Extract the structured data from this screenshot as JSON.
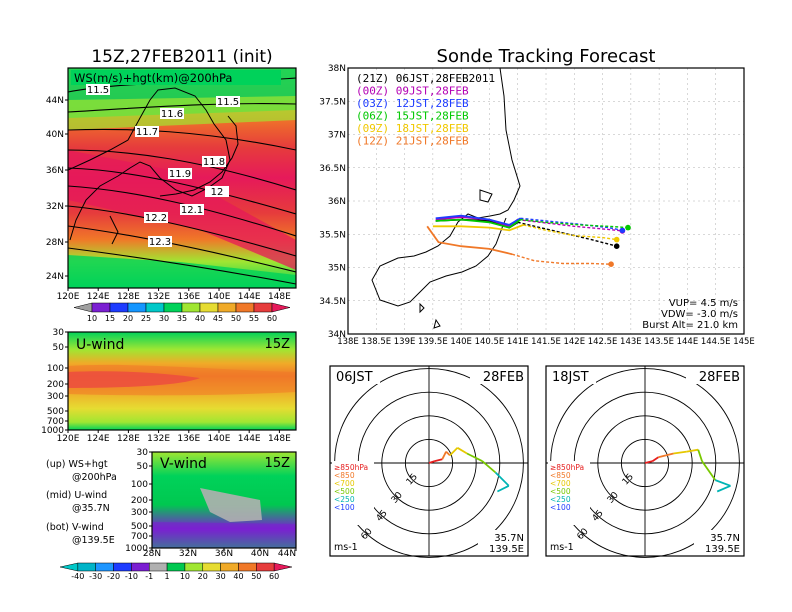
{
  "left_title": "15Z,27FEB2011 (init)",
  "right_title": "Sonde Tracking Forecast",
  "ws_panel": {
    "label": "WS(m/s)+hgt(km)@200hPa",
    "lon_ticks": [
      "120E",
      "124E",
      "128E",
      "132E",
      "136E",
      "140E",
      "144E",
      "148E"
    ],
    "lat_ticks": [
      "44N",
      "40N",
      "36N",
      "32N",
      "28N",
      "24N"
    ],
    "contour_labels": [
      "11.5",
      "11.6",
      "11.5",
      "11.7",
      "11.8",
      "11.9",
      "12",
      "12.1",
      "12.2",
      "12.3"
    ],
    "colorbar": [
      {
        "label": "10",
        "color": "#7b1fd2"
      },
      {
        "label": "15",
        "color": "#1e3cff"
      },
      {
        "label": "20",
        "color": "#1496ff"
      },
      {
        "label": "25",
        "color": "#00c8c8"
      },
      {
        "label": "30",
        "color": "#00d25a"
      },
      {
        "label": "35",
        "color": "#a0e632"
      },
      {
        "label": "40",
        "color": "#e6dc32"
      },
      {
        "label": "45",
        "color": "#f0aa28"
      },
      {
        "label": "50",
        "color": "#f07828"
      },
      {
        "label": "55",
        "color": "#e63c3c"
      },
      {
        "label": "60",
        "color": "#e6195a"
      }
    ]
  },
  "u_panel": {
    "label": "U-wind",
    "time": "15Z",
    "p_ticks": [
      "30",
      "50",
      "100",
      "200",
      "300",
      "500",
      "700",
      "1000"
    ],
    "lon_ticks": [
      "120E",
      "124E",
      "128E",
      "132E",
      "136E",
      "140E",
      "144E",
      "148E"
    ]
  },
  "v_panel": {
    "label": "V-wind",
    "time": "15Z",
    "p_ticks": [
      "30",
      "50",
      "100",
      "200",
      "300",
      "500",
      "700",
      "1000"
    ],
    "lat_ticks": [
      "28N",
      "32N",
      "36N",
      "40N",
      "44N"
    ],
    "colorbar": [
      {
        "label": "-40",
        "color": "#00b4c8"
      },
      {
        "label": "-30",
        "color": "#1e96ff"
      },
      {
        "label": "-20",
        "color": "#1e3cff"
      },
      {
        "label": "-10",
        "color": "#7b1fd2"
      },
      {
        "label": "-1",
        "color": "#b0b0b0"
      },
      {
        "label": "1",
        "color": "#00c850"
      },
      {
        "label": "10",
        "color": "#a0e632"
      },
      {
        "label": "20",
        "color": "#e6dc32"
      },
      {
        "label": "30",
        "color": "#f0aa28"
      },
      {
        "label": "40",
        "color": "#f07828"
      },
      {
        "label": "50",
        "color": "#e63c3c"
      },
      {
        "label": "60",
        "color": "#e6195a"
      }
    ]
  },
  "legend_notes": [
    {
      "a": "(up) WS+hgt",
      "b": "@200hPa"
    },
    {
      "a": "(mid) U-wind",
      "b": "@35.7N"
    },
    {
      "a": "(bot) V-wind",
      "b": "@139.5E"
    }
  ],
  "track_panel": {
    "lat_ticks": [
      "38N",
      "37.5N",
      "37N",
      "36.5N",
      "36N",
      "35.5N",
      "35N",
      "34.5N",
      "34N"
    ],
    "lon_ticks": [
      "138E",
      "138.5E",
      "139E",
      "139.5E",
      "140E",
      "140.5E",
      "141E",
      "141.5E",
      "142E",
      "142.5E",
      "143E",
      "143.5E",
      "144E",
      "144.5E",
      "145E"
    ],
    "info": [
      "VUP= 4.5 m/s",
      "VDW= -3.0 m/s",
      "Burst Alt= 21.0 km"
    ]
  },
  "chart_data": {
    "type": "line",
    "title": "Sonde Tracking Forecast",
    "xlabel": "",
    "ylabel": "",
    "xlim": [
      138,
      145
    ],
    "ylim": [
      34,
      38
    ],
    "series": [
      {
        "name": "(21Z) 06JST,28FEB2011",
        "color": "#000000",
        "lon": [
          139.55,
          140.0,
          140.5,
          140.85,
          141.0,
          141.3,
          141.8,
          142.3,
          142.75
        ],
        "lat": [
          35.7,
          35.72,
          35.7,
          35.6,
          35.68,
          35.62,
          35.52,
          35.42,
          35.32
        ]
      },
      {
        "name": "(00Z) 09JST,28FEB",
        "color": "#b400b4",
        "lon": [
          139.55,
          140.0,
          140.5,
          140.85,
          141.0,
          141.4,
          142.0,
          142.5,
          142.85
        ],
        "lat": [
          35.72,
          35.76,
          35.72,
          35.62,
          35.72,
          35.68,
          35.62,
          35.58,
          35.55
        ]
      },
      {
        "name": "(03Z) 12JST,28FEB",
        "color": "#1e3cff",
        "lon": [
          139.55,
          140.0,
          140.5,
          140.85,
          141.05,
          141.5,
          142.1,
          142.6,
          142.85
        ],
        "lat": [
          35.74,
          35.78,
          35.72,
          35.64,
          35.74,
          35.7,
          35.65,
          35.6,
          35.56
        ]
      },
      {
        "name": "(06Z) 15JST,28FEB",
        "color": "#00c800",
        "lon": [
          139.55,
          140.0,
          140.5,
          140.85,
          141.05,
          141.5,
          142.1,
          142.6,
          142.95
        ],
        "lat": [
          35.7,
          35.72,
          35.68,
          35.6,
          35.72,
          35.68,
          35.64,
          35.62,
          35.6
        ]
      },
      {
        "name": "(09Z) 18JST,28FEB",
        "color": "#f0c800",
        "lon": [
          139.5,
          140.0,
          140.5,
          140.85,
          141.1,
          141.5,
          142.0,
          142.5,
          142.75
        ],
        "lat": [
          35.62,
          35.62,
          35.6,
          35.56,
          35.64,
          35.56,
          35.48,
          35.45,
          35.42
        ]
      },
      {
        "name": "(12Z) 21JST,28FEB",
        "color": "#f07828",
        "lon": [
          139.4,
          139.6,
          140.0,
          140.5,
          140.9,
          141.3,
          141.8,
          142.3,
          142.65
        ],
        "lat": [
          35.62,
          35.38,
          35.32,
          35.28,
          35.2,
          35.1,
          35.06,
          35.06,
          35.05
        ]
      }
    ]
  },
  "hodographs": [
    {
      "time": "06JST",
      "date": "28FEB",
      "loc1": "35.7N",
      "loc2": "139.5E",
      "unit": "ms-1",
      "ring_labels": [
        "15",
        "30",
        "45",
        "60"
      ]
    },
    {
      "time": "18JST",
      "date": "28FEB",
      "loc1": "35.7N",
      "loc2": "139.5E",
      "unit": "ms-1",
      "ring_labels": [
        "15",
        "30",
        "45",
        "60"
      ]
    }
  ],
  "hodo_legend": [
    {
      "label": "≥850hPa",
      "color": "#e61e1e"
    },
    {
      "label": "<850",
      "color": "#f07828"
    },
    {
      "label": "<700",
      "color": "#e6c800"
    },
    {
      "label": "<500",
      "color": "#78c800"
    },
    {
      "label": "<250",
      "color": "#00b4b4"
    },
    {
      "label": "<100",
      "color": "#1e3cff"
    }
  ]
}
